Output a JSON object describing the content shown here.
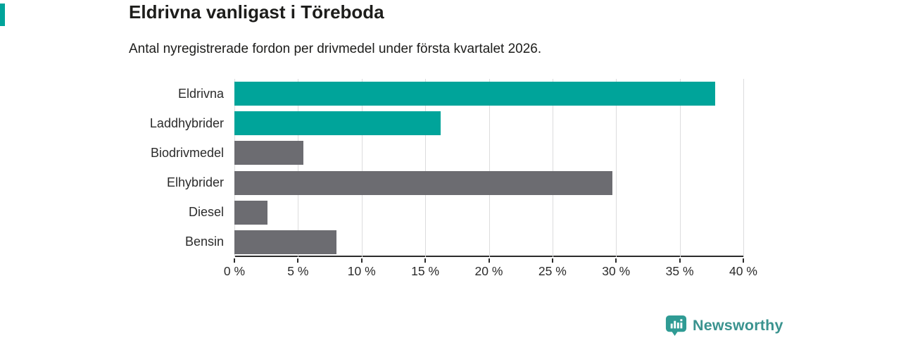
{
  "accent_color": "#00a49a",
  "chart_data": {
    "type": "bar",
    "orientation": "horizontal",
    "title": "Eldrivna vanligast i Töreboda",
    "subtitle": "Antal nyregistrerade fordon per drivmedel under första kvartalet 2026.",
    "categories": [
      "Eldrivna",
      "Laddhybrider",
      "Biodrivmedel",
      "Elhybrider",
      "Diesel",
      "Bensin"
    ],
    "values": [
      37.8,
      16.2,
      5.4,
      29.7,
      2.6,
      8.0
    ],
    "unit": "%",
    "xlabel": "",
    "ylabel": "",
    "xlim": [
      0,
      40
    ],
    "tick_step": 5,
    "x_tick_labels": [
      "0 %",
      "5 %",
      "10 %",
      "15 %",
      "20 %",
      "25 %",
      "30 %",
      "35 %",
      "40 %"
    ],
    "bar_colors": [
      "#00a49a",
      "#00a49a",
      "#6c6c71",
      "#6c6c71",
      "#6c6c71",
      "#6c6c71"
    ],
    "highlight_color": "#00a49a",
    "base_color": "#6c6c71",
    "gridline_color": "#dcdcdd",
    "axis_color": "#2b2b2b",
    "grid": "vertical",
    "legend_position": "none"
  },
  "footer": {
    "brand": "Newsworthy",
    "brand_color": "#3a938f",
    "icon_color": "#2f9b94"
  }
}
